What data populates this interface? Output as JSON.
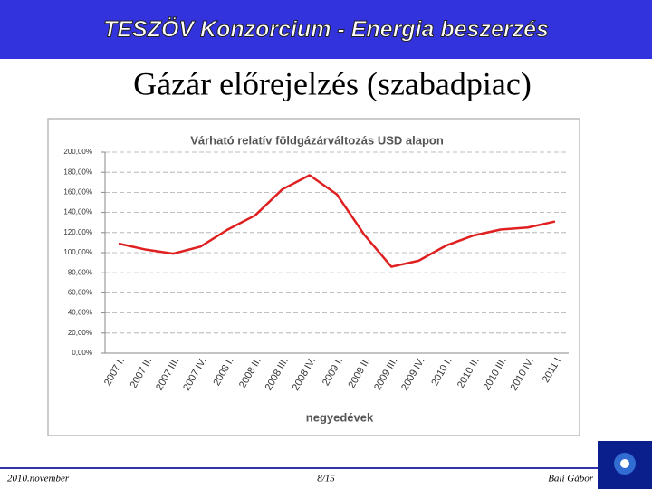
{
  "header": {
    "title": "TESZÖV Konzorcium - Energia beszerzés"
  },
  "slide_title": "Gázár előrejelzés (szabadpiac)",
  "chart_data": {
    "type": "line",
    "title": "Várható relatív földgázárváltozás  USD alapon",
    "x_label": "negyedévek",
    "categories": [
      "2007 I.",
      "2007 II.",
      "2007 III.",
      "2007 IV.",
      "2008 I.",
      "2008 II.",
      "2008 III.",
      "2008 IV.",
      "2009 I.",
      "2009 II.",
      "2009 III.",
      "2009 IV.",
      "2010 I.",
      "2010 II.",
      "2010 III.",
      "2010 IV.",
      "2011 I"
    ],
    "values": [
      109,
      103,
      99,
      106,
      123,
      137,
      163,
      177,
      158,
      118,
      86,
      92,
      107,
      117,
      123,
      125,
      131
    ],
    "color": "#e02020",
    "ylim": [
      0,
      200
    ],
    "yticks": [
      {
        "value": 0,
        "label": "0,00%"
      },
      {
        "value": 20,
        "label": "20,00%"
      },
      {
        "value": 40,
        "label": "40,00%"
      },
      {
        "value": 60,
        "label": "60,00%"
      },
      {
        "value": 80,
        "label": "80,00%"
      },
      {
        "value": 100,
        "label": "100,00%"
      },
      {
        "value": 120,
        "label": "120,00%"
      },
      {
        "value": 140,
        "label": "140,00%"
      },
      {
        "value": 160,
        "label": "160,00%"
      },
      {
        "value": 180,
        "label": "180,00%"
      },
      {
        "value": 200,
        "label": "200,00%"
      }
    ],
    "grid": true
  },
  "footer": {
    "left": "2010.november",
    "center": "8/15",
    "right": "Bali Gábor"
  }
}
